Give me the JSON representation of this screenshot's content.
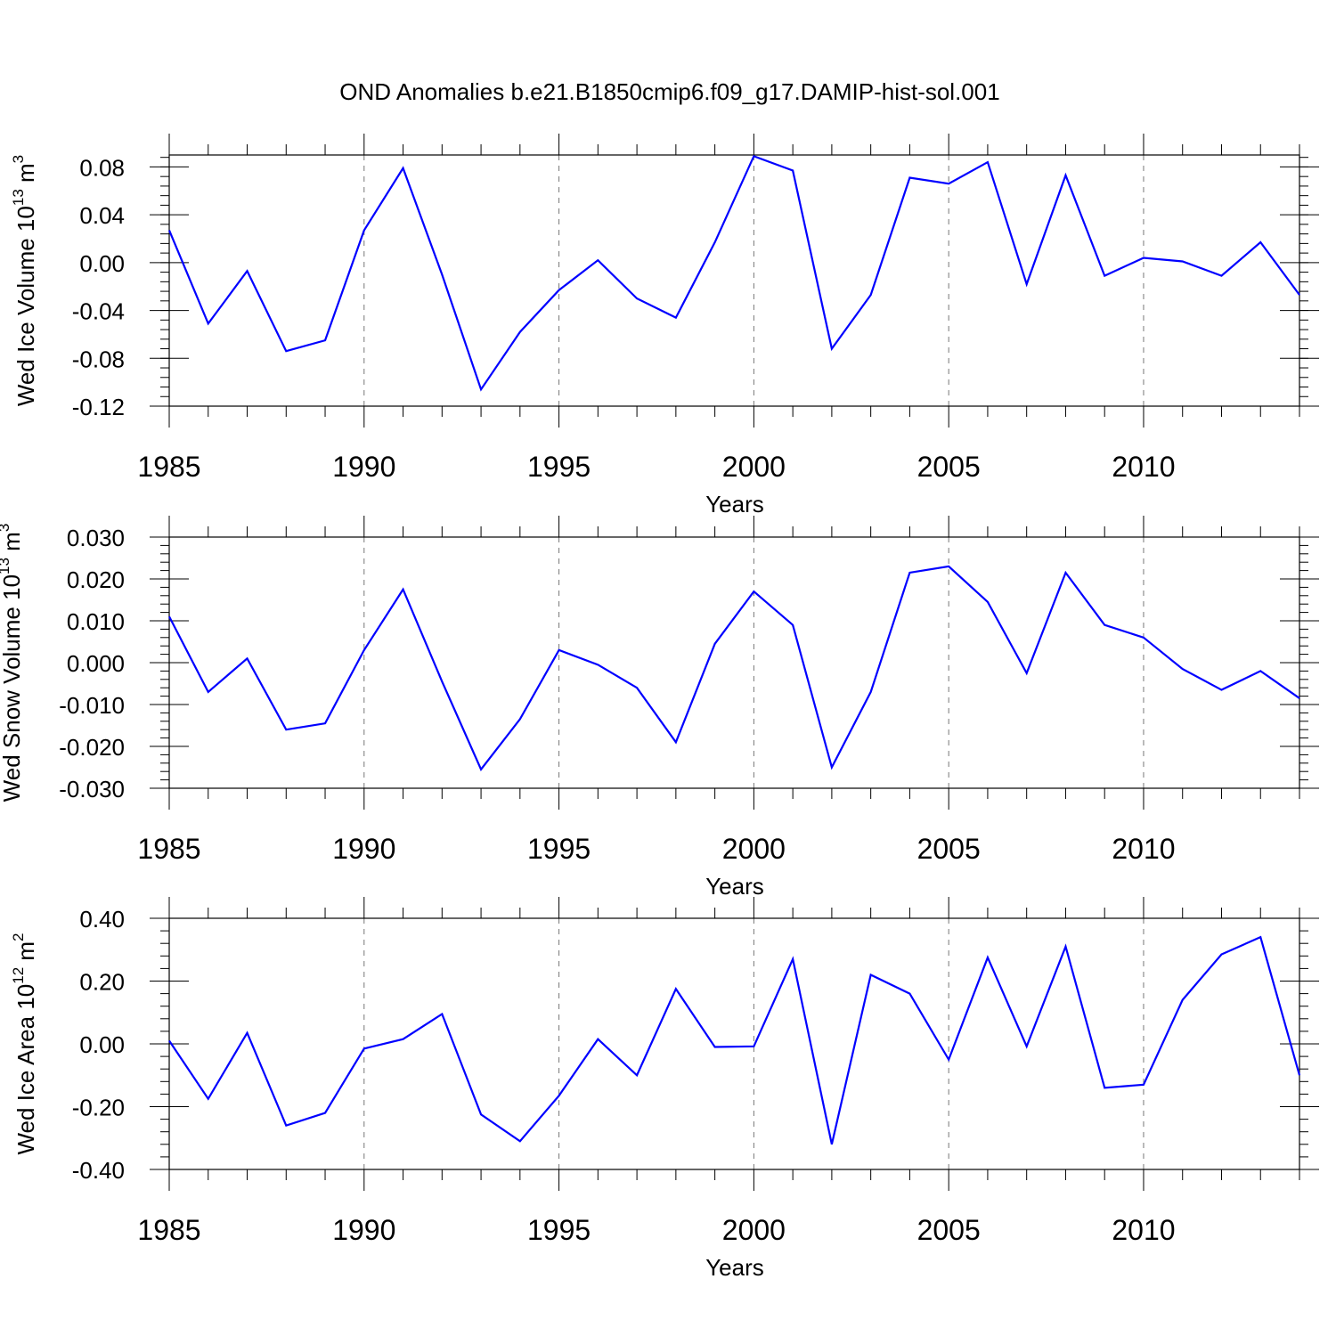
{
  "title": "OND Anomalies b.e21.B1850cmip6.f09_g17.DAMIP-hist-sol.001",
  "chart_data": [
    {
      "type": "line",
      "ylabel": "Wed Ice Volume 10",
      "ylabel_exp": "13",
      "ylabel_unit": " m",
      "ylabel_unit_exp": "3",
      "xlabel": "Years",
      "xlim": [
        1985,
        2014
      ],
      "ylim": [
        -0.12,
        0.09
      ],
      "x_ticks": [
        1985,
        1990,
        1995,
        2000,
        2005,
        2010
      ],
      "y_ticks": [
        "-0.12",
        "-0.08",
        "-0.04",
        "0.00",
        "0.04",
        "0.08"
      ],
      "grid": "vertical dashed at labeled years",
      "series": [
        {
          "color": "#0000ff",
          "x": [
            1985,
            1986,
            1987,
            1988,
            1989,
            1990,
            1991,
            1992,
            1993,
            1994,
            1995,
            1996,
            1997,
            1998,
            1999,
            2000,
            2001,
            2002,
            2003,
            2004,
            2005,
            2006,
            2007,
            2008,
            2009,
            2010,
            2011,
            2012,
            2013,
            2014
          ],
          "values": [
            0.027,
            -0.051,
            -0.007,
            -0.074,
            -0.065,
            0.027,
            0.079,
            -0.01,
            -0.106,
            -0.058,
            -0.023,
            0.002,
            -0.03,
            -0.046,
            0.017,
            0.089,
            0.077,
            -0.072,
            -0.027,
            0.071,
            0.066,
            0.084,
            -0.018,
            0.073,
            -0.011,
            0.004,
            0.001,
            -0.011,
            0.017,
            -0.027
          ]
        }
      ]
    },
    {
      "type": "line",
      "ylabel": "Wed Snow Volume 10",
      "ylabel_exp": "13",
      "ylabel_unit": " m",
      "ylabel_unit_exp": "3",
      "xlabel": "Years",
      "xlim": [
        1985,
        2014
      ],
      "ylim": [
        -0.03,
        0.03
      ],
      "x_ticks": [
        1985,
        1990,
        1995,
        2000,
        2005,
        2010
      ],
      "y_ticks": [
        "-0.030",
        "-0.020",
        "-0.010",
        "0.000",
        "0.010",
        "0.020",
        "0.030"
      ],
      "grid": "vertical dashed at labeled years",
      "series": [
        {
          "color": "#0000ff",
          "x": [
            1985,
            1986,
            1987,
            1988,
            1989,
            1990,
            1991,
            1992,
            1993,
            1994,
            1995,
            1996,
            1997,
            1998,
            1999,
            2000,
            2001,
            2002,
            2003,
            2004,
            2005,
            2006,
            2007,
            2008,
            2009,
            2010,
            2011,
            2012,
            2013,
            2014
          ],
          "values": [
            0.011,
            -0.007,
            0.001,
            -0.016,
            -0.0145,
            0.003,
            0.0175,
            -0.0045,
            -0.0255,
            -0.0135,
            0.003,
            -0.0005,
            -0.006,
            -0.019,
            0.0045,
            0.017,
            0.009,
            -0.025,
            -0.007,
            0.0215,
            0.023,
            0.0145,
            -0.0025,
            0.0215,
            0.009,
            0.006,
            -0.0015,
            -0.0065,
            -0.002,
            -0.0085
          ]
        }
      ]
    },
    {
      "type": "line",
      "ylabel": "Wed Ice Area 10",
      "ylabel_exp": "12",
      "ylabel_unit": " m",
      "ylabel_unit_exp": "2",
      "xlabel": "Years",
      "xlim": [
        1985,
        2014
      ],
      "ylim": [
        -0.4,
        0.4
      ],
      "x_ticks": [
        1985,
        1990,
        1995,
        2000,
        2005,
        2010
      ],
      "y_ticks": [
        "-0.40",
        "-0.20",
        "0.00",
        "0.20",
        "0.40"
      ],
      "grid": "vertical dashed at labeled years",
      "series": [
        {
          "color": "#0000ff",
          "x": [
            1985,
            1986,
            1987,
            1988,
            1989,
            1990,
            1991,
            1992,
            1993,
            1994,
            1995,
            1996,
            1997,
            1998,
            1999,
            2000,
            2001,
            2002,
            2003,
            2004,
            2005,
            2006,
            2007,
            2008,
            2009,
            2010,
            2011,
            2012,
            2013,
            2014
          ],
          "values": [
            0.01,
            -0.175,
            0.035,
            -0.26,
            -0.22,
            -0.015,
            0.015,
            0.095,
            -0.225,
            -0.31,
            -0.165,
            0.015,
            -0.1,
            0.175,
            -0.01,
            -0.008,
            0.27,
            -0.32,
            0.22,
            0.16,
            -0.05,
            0.275,
            -0.008,
            0.31,
            -0.14,
            -0.13,
            0.14,
            0.285,
            0.34,
            -0.1
          ]
        }
      ]
    }
  ]
}
